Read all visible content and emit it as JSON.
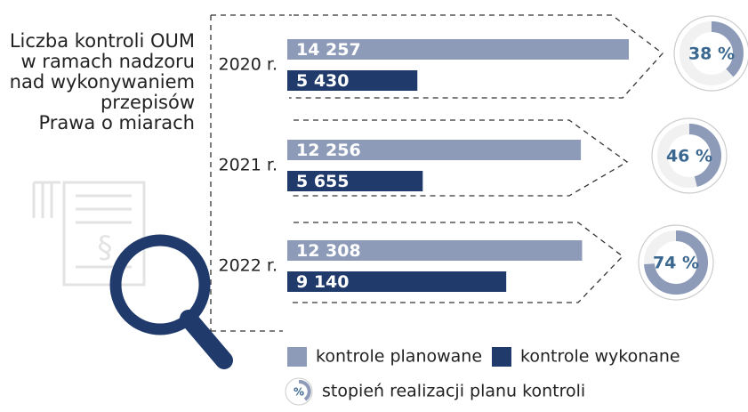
{
  "chart_data": {
    "type": "bar",
    "title_lines": [
      "Liczba kontroli OUM",
      "w ramach nadzoru",
      "nad wykonywaniem",
      "przepisów",
      "Prawa o miarach"
    ],
    "categories": [
      "2020 r.",
      "2021 r.",
      "2022 r."
    ],
    "xlim": [
      0,
      15000
    ],
    "series": [
      {
        "name": "kontrole planowane",
        "color": "#8d9bb8",
        "values": [
          14257,
          12256,
          12308
        ],
        "value_labels": [
          "14 257",
          "12 256",
          "12 308"
        ]
      },
      {
        "name": "kontrole wykonane",
        "color": "#1f3a6b",
        "values": [
          5430,
          5655,
          9140
        ],
        "value_labels": [
          "5 430",
          "5 655",
          "9 140"
        ]
      }
    ],
    "completion": {
      "name": "stopień realizacji planu kontroli",
      "icon_label": "%",
      "color": "#8d9bb8",
      "text_color": "#3b6890",
      "values": [
        38,
        46,
        74
      ],
      "value_labels": [
        "38 %",
        "46 %",
        "74 %"
      ]
    }
  }
}
